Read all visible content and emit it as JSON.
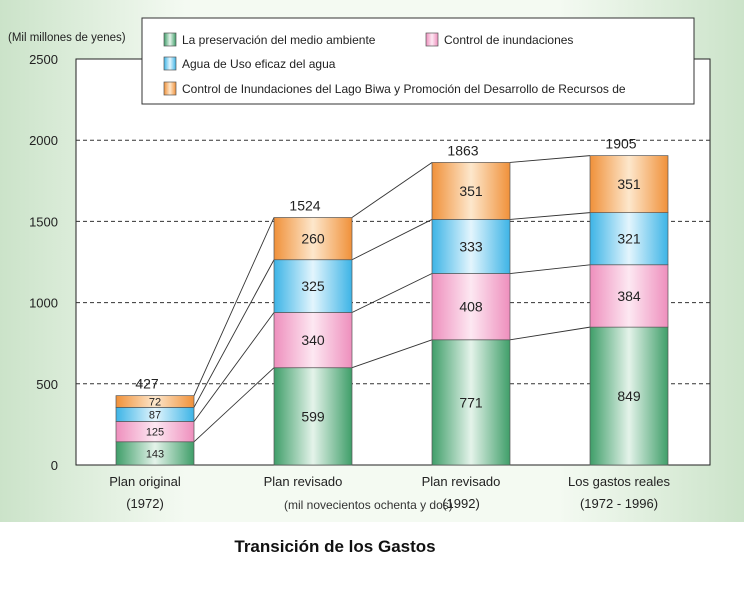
{
  "chart_data": {
    "type": "bar",
    "stacked": true,
    "title": "Transición de los Gastos",
    "ylabel": "(Mil millones de yenes)",
    "ylim": [
      0,
      2500
    ],
    "yticks": [
      0,
      500,
      1000,
      1500,
      2000,
      2500
    ],
    "grid": true,
    "legend_position": "top",
    "categories": [
      {
        "label": "Plan original",
        "sublabel": "(1972)"
      },
      {
        "label": "Plan revisado",
        "sublabel": ""
      },
      {
        "label": "Plan revisado",
        "sublabel": "(1992)"
      },
      {
        "label": "Los gastos reales",
        "sublabel": "(1972 - 1996)"
      }
    ],
    "overlay_note": "(mil novecientos ochenta y dos)",
    "totals": [
      427,
      1524,
      1863,
      1905
    ],
    "series": [
      {
        "name": "La preservación del medio ambiente",
        "values": [
          143,
          599,
          771,
          849
        ],
        "color": "#3f9e69",
        "light": "#e4f3ea"
      },
      {
        "name": "Control de inundaciones",
        "values": [
          125,
          340,
          408,
          384
        ],
        "color": "#ee8fbd",
        "light": "#fde8f2"
      },
      {
        "name": "Agua de Uso eficaz del agua",
        "values": [
          87,
          325,
          333,
          321
        ],
        "color": "#3db4e6",
        "light": "#e3f5fd"
      },
      {
        "name": "Control de Inundaciones del Lago Biwa y Promoción del Desarrollo de Recursos de",
        "values": [
          72,
          260,
          351,
          351
        ],
        "color": "#f0913a",
        "light": "#fde7cc"
      }
    ]
  }
}
